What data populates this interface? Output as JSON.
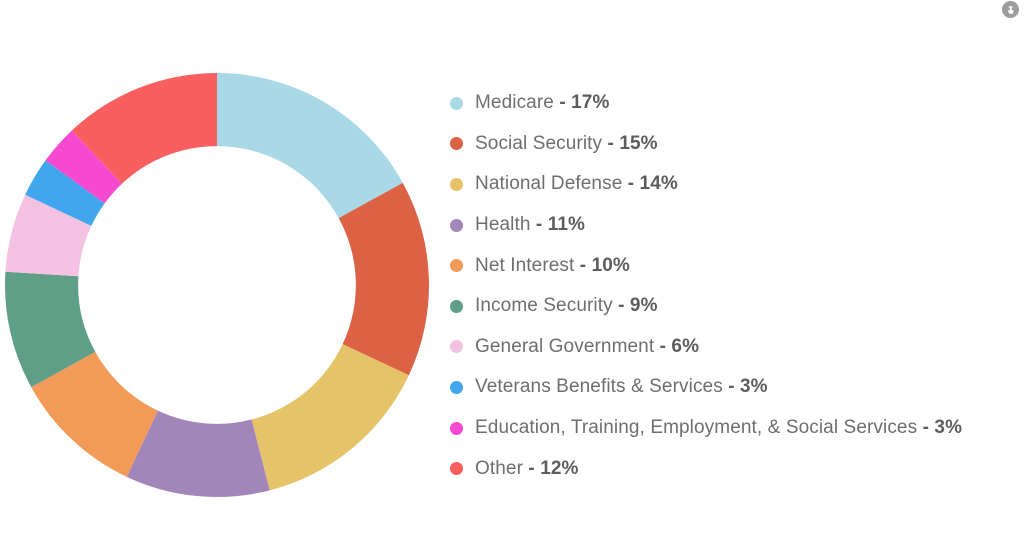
{
  "page": {
    "background": "#ffffff"
  },
  "corner_icon": {
    "semantic": "tap-interaction-indicator",
    "bg_color": "#9d9d9d",
    "glyph_color": "#ffffff"
  },
  "chart_data": {
    "type": "pie",
    "variant": "donut",
    "title": "",
    "start_angle_deg": 0,
    "direction": "clockwise",
    "inner_radius_ratio": 0.655,
    "legend_position": "right",
    "value_suffix": "%",
    "separator": "- ",
    "series": [
      {
        "label": "Medicare",
        "value": 17,
        "color": "#a9d8e6"
      },
      {
        "label": "Social Security",
        "value": 15,
        "color": "#dc6245"
      },
      {
        "label": "National Defense",
        "value": 14,
        "color": "#e6c369"
      },
      {
        "label": "Health",
        "value": 11,
        "color": "#a286ba"
      },
      {
        "label": "Net Interest",
        "value": 10,
        "color": "#f29b58"
      },
      {
        "label": "Income Security",
        "value": 9,
        "color": "#5f9e87"
      },
      {
        "label": "General Government",
        "value": 6,
        "color": "#f3c2e3"
      },
      {
        "label": "Veterans Benefits & Services",
        "value": 3,
        "color": "#41a6ed"
      },
      {
        "label": "Education, Training, Employment, & Social Services",
        "value": 3,
        "color": "#f84ad1"
      },
      {
        "label": "Other",
        "value": 12,
        "color": "#fa5f5f"
      }
    ]
  }
}
